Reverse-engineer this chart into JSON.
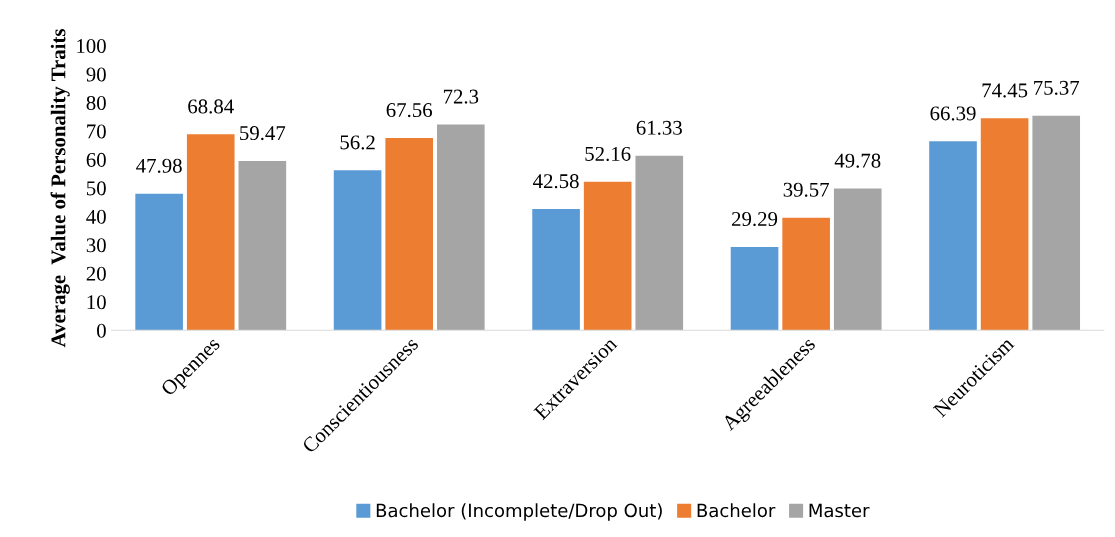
{
  "chart_data": {
    "type": "bar",
    "ylabel": "Average  Value of Personality Traits",
    "categories": [
      "Opennes",
      "Conscientiousness",
      "Extraversion",
      "Agreeableness",
      "Neuroticism"
    ],
    "series": [
      {
        "name": "Bachelor (Incomplete/Drop Out)",
        "color": "#5b9bd5",
        "values": [
          47.98,
          56.2,
          42.58,
          29.29,
          66.39
        ]
      },
      {
        "name": "Bachelor",
        "color": "#ed7d31",
        "values": [
          68.84,
          67.56,
          52.16,
          39.57,
          74.45
        ]
      },
      {
        "name": "Master",
        "color": "#a5a5a5",
        "values": [
          59.47,
          72.3,
          61.33,
          49.78,
          75.37
        ]
      }
    ],
    "ylim": [
      0,
      100
    ],
    "yticks": [
      0,
      10,
      20,
      30,
      40,
      50,
      60,
      70,
      80,
      90,
      100
    ],
    "data_labels": true,
    "grid": false,
    "legend": "bottom"
  }
}
